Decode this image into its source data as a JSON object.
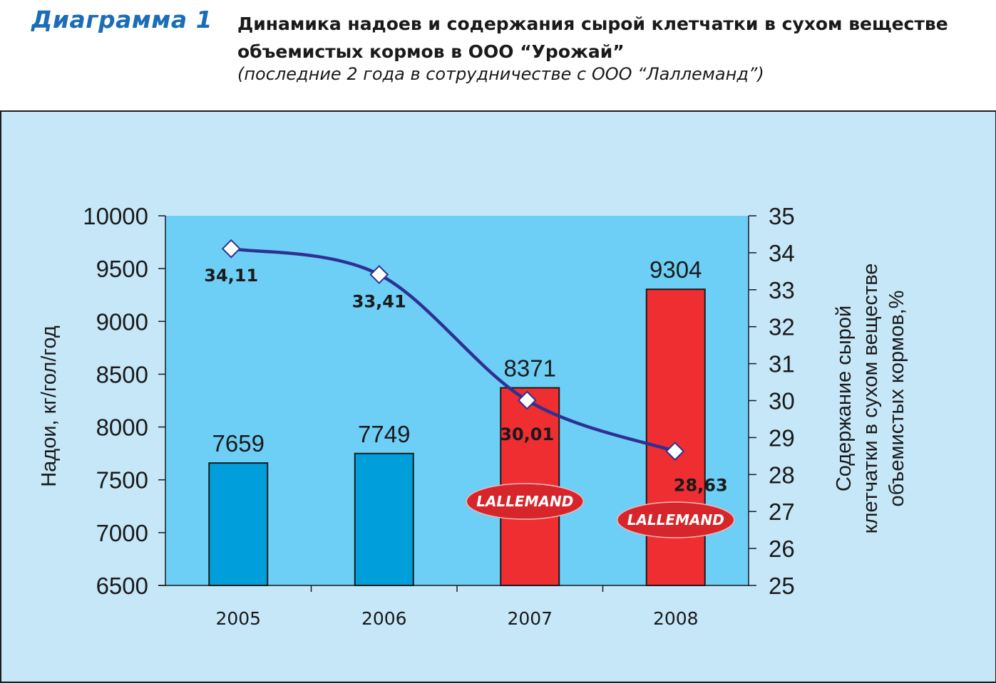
{
  "header": {
    "label": "Диаграмма 1",
    "title": "Динамика надоев и содержания сырой клетчатки в сухом веществе объемистых кормов в ООО “Урожай”",
    "subtitle": "(последние 2 года в сотрудничестве с ООО “Лаллеманд”)"
  },
  "colors": {
    "frame_bg": "#c6e7f8",
    "plot_bg": "#6dcff6",
    "bar_blue": "#009fdb",
    "bar_red": "#ee2e30",
    "line": "#2e3192",
    "logo_oval": "#d7262b"
  },
  "chart_data": {
    "type": "bar+line",
    "categories": [
      "2005",
      "2006",
      "2007",
      "2008"
    ],
    "series": [
      {
        "axis": "left",
        "type": "bar",
        "values": [
          7659,
          7749,
          8371,
          9304
        ],
        "labels": [
          "7659",
          "7749",
          "8371",
          "9304"
        ]
      },
      {
        "axis": "right",
        "type": "line",
        "values": [
          34.11,
          33.41,
          30.01,
          28.63
        ],
        "labels": [
          "34,11",
          "33,41",
          "30,01",
          "28,63"
        ]
      }
    ],
    "bar_highlight": [
      false,
      false,
      true,
      true
    ],
    "logo_text": "LALLEMAND",
    "ylabel": "Надои, кг/гол/год",
    "ylim": [
      6500,
      10000
    ],
    "yticks": [
      "6500",
      "7000",
      "7500",
      "8000",
      "8500",
      "9000",
      "9500",
      "10000"
    ],
    "y2label": [
      "Содержание сырой",
      "клетчатки в сухом веществе",
      "объемистых кормов,%"
    ],
    "y2lim": [
      25,
      35
    ],
    "y2ticks": [
      "25",
      "26",
      "27",
      "28",
      "29",
      "30",
      "31",
      "32",
      "33",
      "34",
      "35"
    ],
    "grid": false,
    "legend": "none"
  }
}
